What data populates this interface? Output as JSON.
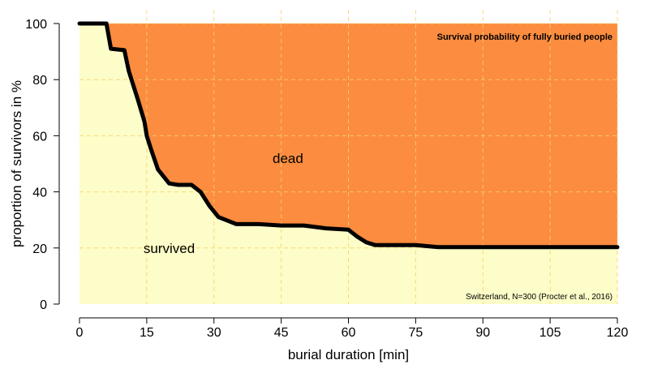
{
  "chart_data": {
    "type": "area",
    "title": "Survival probability of fully buried people",
    "source_note": "Switzerland, N=300 (Procter et al., 2016)",
    "xlabel": "burial duration [min]",
    "ylabel": "proportion of survivors in %",
    "xlim": [
      0,
      120
    ],
    "ylim": [
      0,
      100
    ],
    "xticks": [
      0,
      15,
      30,
      45,
      60,
      75,
      90,
      105,
      120
    ],
    "yticks": [
      0,
      20,
      40,
      60,
      80,
      100
    ],
    "grid": true,
    "annotations": {
      "dead": "dead",
      "survived": "survived"
    },
    "colors": {
      "dead_fill": "#fc8c3f",
      "survived_fill": "#fdfdc9",
      "curve": "#000000",
      "grid": "#f5d36b"
    },
    "curve": {
      "x": [
        0,
        6,
        7,
        10,
        11,
        13,
        14.5,
        15,
        16,
        17.5,
        20,
        22,
        25,
        27,
        29,
        31,
        35,
        40,
        45,
        50,
        55,
        60,
        62,
        64,
        66,
        70,
        75,
        80,
        90,
        105,
        120
      ],
      "y": [
        100,
        100,
        91,
        90.5,
        83,
        73,
        65,
        60,
        55,
        48,
        43,
        42.5,
        42.5,
        40,
        35,
        31,
        28.5,
        28.5,
        28,
        28,
        27,
        26.5,
        24,
        22,
        21,
        21,
        21,
        20.3,
        20.3,
        20.3,
        20.3
      ]
    }
  }
}
